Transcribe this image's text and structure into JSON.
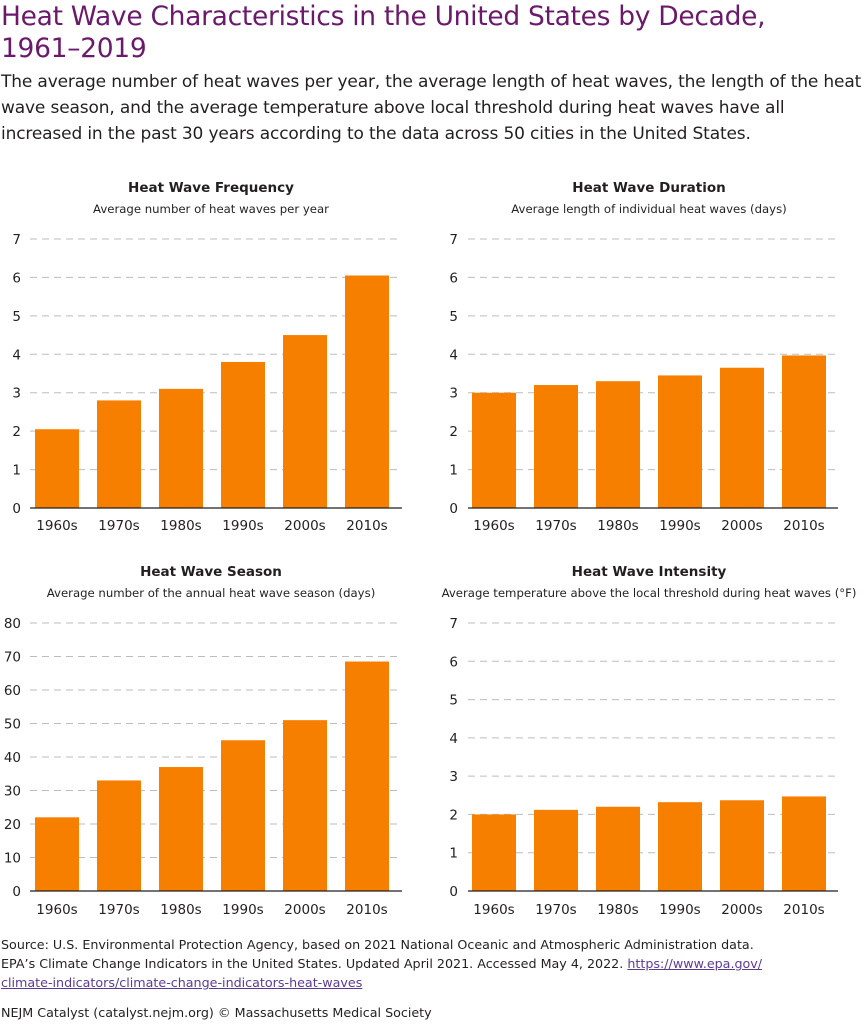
{
  "title_line1": "Heat Wave Characteristics in the United States by Decade,",
  "title_line2": "1961–2019",
  "subtitle": "The average number of heat waves per year, the average length of heat waves, the length of the heat wave season, and the average temperature above local threshold during heat waves have all increased in the past 30 years according to the data across 50 cities in the United States.",
  "colors": {
    "bar": "#f77f00",
    "title": "#6b1a6b",
    "grid": "#bdbdbd",
    "link": "#5b3a97"
  },
  "chart_data": [
    {
      "type": "bar",
      "title": "Heat Wave Frequency",
      "subtitle": "Average number of heat waves per year",
      "categories": [
        "1960s",
        "1970s",
        "1980s",
        "1990s",
        "2000s",
        "2010s"
      ],
      "values": [
        2.05,
        2.8,
        3.1,
        3.8,
        4.5,
        6.05
      ],
      "ylim": [
        0,
        7
      ],
      "yticks": [
        0,
        1,
        2,
        3,
        4,
        5,
        6,
        7
      ],
      "grid": true
    },
    {
      "type": "bar",
      "title": "Heat Wave Duration",
      "subtitle": "Average length of individual heat waves (days)",
      "categories": [
        "1960s",
        "1970s",
        "1980s",
        "1990s",
        "2000s",
        "2010s"
      ],
      "values": [
        3.0,
        3.2,
        3.3,
        3.45,
        3.65,
        3.97
      ],
      "ylim": [
        0,
        7
      ],
      "yticks": [
        0,
        1,
        2,
        3,
        4,
        5,
        6,
        7
      ],
      "grid": true
    },
    {
      "type": "bar",
      "title": "Heat Wave Season",
      "subtitle": "Average number of the annual heat wave season (days)",
      "categories": [
        "1960s",
        "1970s",
        "1980s",
        "1990s",
        "2000s",
        "2010s"
      ],
      "values": [
        22,
        33,
        37,
        45,
        51,
        68.5
      ],
      "ylim": [
        0,
        80
      ],
      "yticks": [
        0,
        10,
        20,
        30,
        40,
        50,
        60,
        70,
        80
      ],
      "grid": true
    },
    {
      "type": "bar",
      "title": "Heat Wave Intensity",
      "subtitle": "Average temperature above the local threshold during heat waves (°F)",
      "categories": [
        "1960s",
        "1970s",
        "1980s",
        "1990s",
        "2000s",
        "2010s"
      ],
      "values": [
        2.0,
        2.12,
        2.2,
        2.32,
        2.37,
        2.47
      ],
      "ylim": [
        0,
        7
      ],
      "yticks": [
        0,
        1,
        2,
        3,
        4,
        5,
        6,
        7
      ],
      "grid": true
    }
  ],
  "source": {
    "line1": "Source: U.S. Environmental Protection Agency, based on 2021 National Oceanic and Atmospheric Administration data.",
    "line2_text": "EPA’s Climate Change Indicators in the United States. Updated April 2021. Accessed May 4, 2022.",
    "link_part1": "https://www.epa.gov/",
    "link_part2": "climate-indicators/climate-change-indicators-heat-waves"
  },
  "credit": "NEJM Catalyst (catalyst.nejm.org) © Massachusetts Medical Society"
}
